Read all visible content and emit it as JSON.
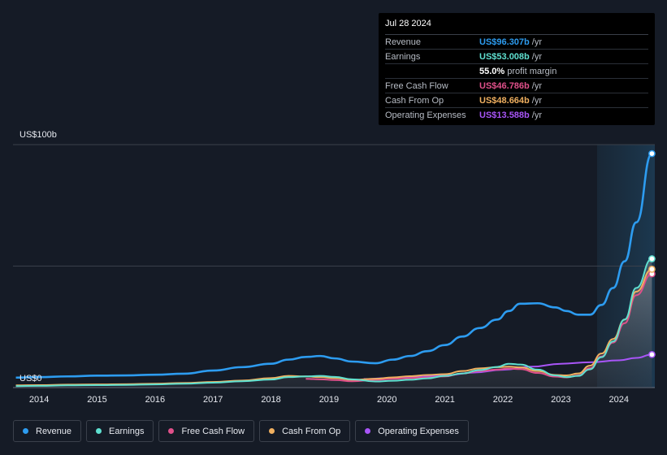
{
  "tooltip": {
    "date": "Jul 28 2024",
    "rows": [
      {
        "label": "Revenue",
        "value": "US$96.307b",
        "unit": "/yr",
        "color": "#2d9cf0"
      },
      {
        "label": "Earnings",
        "value": "US$53.008b",
        "unit": "/yr",
        "color": "#5fe0d0"
      },
      {
        "label": "",
        "value": "55.0%",
        "unit": "profit margin",
        "color": "#ffffff"
      },
      {
        "label": "Free Cash Flow",
        "value": "US$46.786b",
        "unit": "/yr",
        "color": "#e0508a"
      },
      {
        "label": "Cash From Op",
        "value": "US$48.664b",
        "unit": "/yr",
        "color": "#f0b060"
      },
      {
        "label": "Operating Expenses",
        "value": "US$13.588b",
        "unit": "/yr",
        "color": "#a855f7"
      }
    ]
  },
  "legend": [
    {
      "label": "Revenue",
      "color": "#2d9cf0"
    },
    {
      "label": "Earnings",
      "color": "#5fe0d0"
    },
    {
      "label": "Free Cash Flow",
      "color": "#e0508a"
    },
    {
      "label": "Cash From Op",
      "color": "#f0b060"
    },
    {
      "label": "Operating Expenses",
      "color": "#a855f7"
    }
  ],
  "chart_data": {
    "type": "line",
    "ylabel_top": "US$100b",
    "ylabel_bottom": "US$0",
    "ylim": [
      0,
      100
    ],
    "xlim": [
      2013.55,
      2024.62
    ],
    "x_ticks": [
      "2014",
      "2015",
      "2016",
      "2017",
      "2018",
      "2019",
      "2020",
      "2021",
      "2022",
      "2023",
      "2024"
    ],
    "series": [
      {
        "name": "Revenue",
        "color": "#2d9cf0",
        "x": [
          2013.6,
          2014.0,
          2014.5,
          2015.0,
          2015.5,
          2016.0,
          2016.5,
          2017.0,
          2017.5,
          2018.0,
          2018.3,
          2018.6,
          2018.85,
          2019.1,
          2019.4,
          2019.8,
          2020.1,
          2020.4,
          2020.7,
          2021.0,
          2021.3,
          2021.6,
          2021.9,
          2022.1,
          2022.3,
          2022.6,
          2022.9,
          2023.1,
          2023.3,
          2023.5,
          2023.7,
          2023.9,
          2024.1,
          2024.3,
          2024.57
        ],
        "y": [
          4.1,
          4.3,
          4.6,
          4.9,
          5.0,
          5.3,
          5.7,
          7.0,
          8.4,
          9.8,
          11.5,
          12.6,
          13.0,
          12.0,
          10.7,
          10.0,
          11.5,
          13.0,
          15.0,
          17.5,
          21.0,
          24.5,
          28.0,
          31.5,
          34.5,
          34.7,
          33.0,
          31.5,
          30.0,
          30.0,
          34.0,
          41.0,
          52.0,
          68.0,
          96.3
        ]
      },
      {
        "name": "Earnings",
        "color": "#5fe0d0",
        "x": [
          2013.6,
          2014.0,
          2014.5,
          2015.0,
          2015.5,
          2016.0,
          2016.5,
          2017.0,
          2017.5,
          2018.0,
          2018.3,
          2018.6,
          2018.85,
          2019.1,
          2019.4,
          2019.8,
          2020.1,
          2020.4,
          2020.7,
          2021.0,
          2021.3,
          2021.6,
          2021.9,
          2022.1,
          2022.3,
          2022.6,
          2022.9,
          2023.1,
          2023.3,
          2023.5,
          2023.7,
          2023.9,
          2024.1,
          2024.3,
          2024.57
        ],
        "y": [
          0.6,
          0.7,
          0.9,
          1.0,
          1.1,
          1.3,
          1.6,
          2.0,
          2.6,
          3.3,
          4.3,
          4.6,
          4.8,
          4.4,
          3.4,
          2.5,
          2.8,
          3.2,
          3.8,
          4.8,
          5.8,
          7.2,
          8.5,
          9.8,
          9.5,
          7.4,
          5.0,
          4.3,
          4.8,
          7.5,
          12.5,
          19.0,
          28.0,
          41.0,
          53.0
        ]
      },
      {
        "name": "Free Cash Flow",
        "color": "#e0508a",
        "x": [
          2018.6,
          2018.85,
          2019.1,
          2019.4,
          2019.8,
          2020.1,
          2020.4,
          2020.7,
          2021.0,
          2021.3,
          2021.6,
          2021.9,
          2022.1,
          2022.3,
          2022.6,
          2022.9,
          2023.1,
          2023.3,
          2023.5,
          2023.7,
          2023.9,
          2024.1,
          2024.3,
          2024.57
        ],
        "y": [
          3.6,
          3.4,
          3.1,
          2.6,
          3.2,
          3.6,
          3.9,
          4.2,
          4.6,
          5.8,
          6.8,
          7.4,
          7.8,
          7.6,
          6.0,
          4.5,
          4.2,
          5.0,
          8.0,
          12.8,
          18.5,
          26.5,
          38.0,
          46.8
        ]
      },
      {
        "name": "Cash From Op",
        "color": "#f0b060",
        "x": [
          2013.6,
          2014.0,
          2014.5,
          2015.0,
          2015.5,
          2016.0,
          2016.5,
          2017.0,
          2017.5,
          2018.0,
          2018.3,
          2018.6,
          2018.85,
          2019.1,
          2019.4,
          2019.8,
          2020.1,
          2020.4,
          2020.7,
          2021.0,
          2021.3,
          2021.6,
          2021.9,
          2022.1,
          2022.3,
          2022.6,
          2022.9,
          2023.1,
          2023.3,
          2023.5,
          2023.7,
          2023.9,
          2024.1,
          2024.3,
          2024.57
        ],
        "y": [
          0.9,
          1.0,
          1.2,
          1.3,
          1.4,
          1.6,
          1.9,
          2.3,
          2.9,
          3.9,
          4.8,
          4.6,
          4.3,
          3.9,
          3.2,
          3.6,
          4.2,
          4.7,
          5.2,
          5.5,
          6.8,
          7.9,
          8.4,
          8.6,
          8.3,
          6.8,
          5.2,
          5.0,
          5.8,
          9.0,
          14.0,
          20.0,
          28.0,
          39.5,
          48.7
        ]
      },
      {
        "name": "Operating Expenses",
        "color": "#a855f7",
        "x": [
          2019.6,
          2020.0,
          2020.5,
          2021.0,
          2021.5,
          2022.0,
          2022.5,
          2023.0,
          2023.5,
          2024.0,
          2024.3,
          2024.57
        ],
        "y": [
          3.5,
          3.9,
          4.4,
          5.0,
          6.2,
          7.3,
          8.6,
          9.8,
          10.4,
          11.2,
          12.2,
          13.6
        ]
      }
    ]
  }
}
